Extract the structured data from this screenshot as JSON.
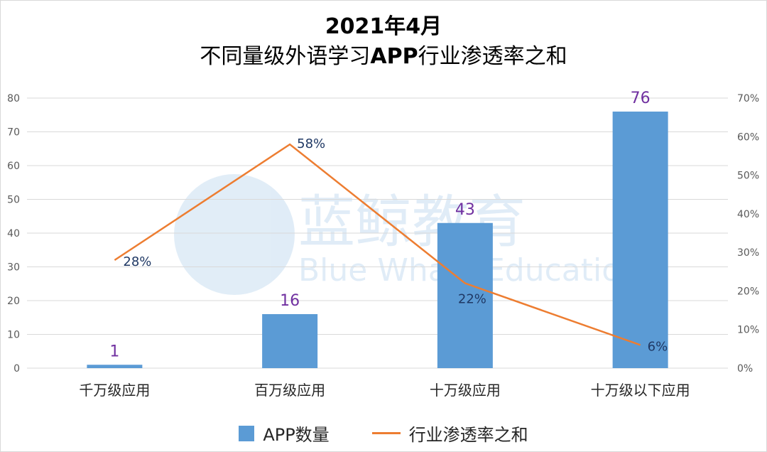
{
  "title_line1": "2021年4月",
  "title_line2_a": "不同量级外语学习",
  "title_line2_b": "APP",
  "title_line2_c": "行业渗透率之和",
  "watermark": {
    "cn": "蓝鲸教育",
    "en": "Blue Whale Education"
  },
  "colors": {
    "bar": "#5b9bd5",
    "line": "#ed7d31",
    "bar_label": "#7030a0",
    "line_label": "#1f3864",
    "grid": "#d9d9d9"
  },
  "chart_data": {
    "type": "bar+line",
    "categories": [
      "千万级应用",
      "百万级应用",
      "十万级应用",
      "十万级以下应用"
    ],
    "series": [
      {
        "name": "APP数量",
        "type": "bar",
        "axis": "left",
        "values": [
          1,
          16,
          43,
          76
        ],
        "labels": [
          "1",
          "16",
          "43",
          "76"
        ]
      },
      {
        "name": "行业渗透率之和",
        "type": "line",
        "axis": "right",
        "values": [
          28,
          58,
          22,
          6
        ],
        "labels": [
          "28%",
          "58%",
          "22%",
          "6%"
        ]
      }
    ],
    "y_left": {
      "range": [
        0,
        80
      ],
      "ticks": [
        "0",
        "10",
        "20",
        "30",
        "40",
        "50",
        "60",
        "70",
        "80"
      ]
    },
    "y_right": {
      "range": [
        0,
        70
      ],
      "ticks": [
        "0%",
        "10%",
        "20%",
        "30%",
        "40%",
        "50%",
        "60%",
        "70%"
      ]
    },
    "grid": true,
    "legend_position": "bottom"
  }
}
